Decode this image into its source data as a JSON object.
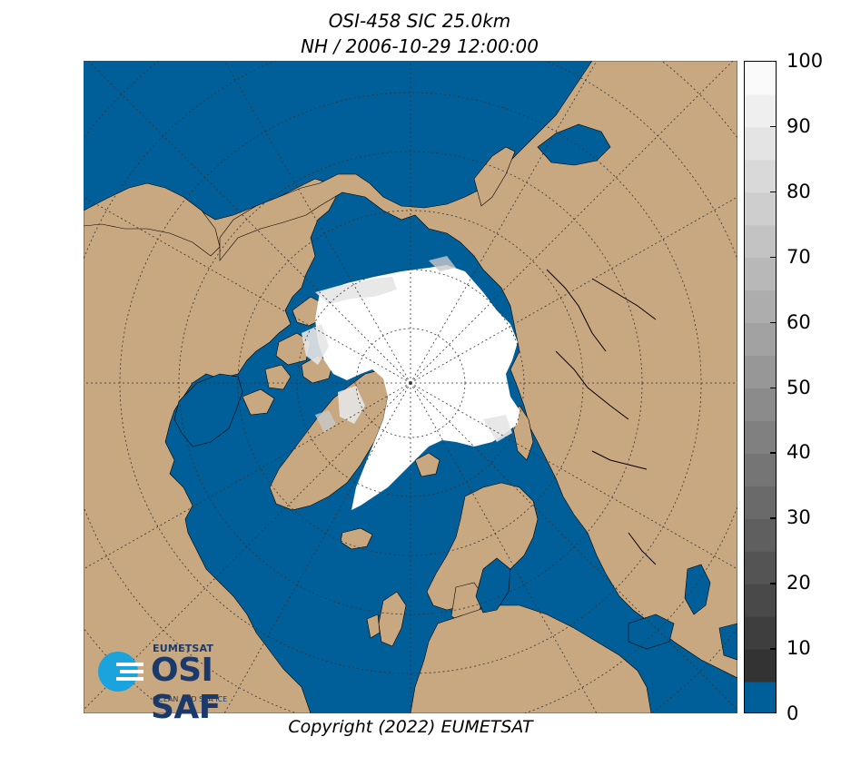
{
  "title_line1": "OSI-458 SIC 25.0km",
  "title_line2": "NH / 2006-10-29 12:00:00",
  "copyright": "Copyright (2022)  EUMETSAT",
  "logo": {
    "top": "EUMETSAT",
    "main": "OSI SAF",
    "bottom": "OCEAN AND SEA ICE"
  },
  "colorbar": {
    "min": 0,
    "max": 100,
    "step": 5,
    "tick_labels": [
      "0",
      "10",
      "20",
      "30",
      "40",
      "50",
      "60",
      "70",
      "80",
      "90",
      "100"
    ],
    "zero_color": "#005f99"
  },
  "colors": {
    "ocean": "#005f99",
    "land": "#c8a880",
    "ice": "#ffffff",
    "graticule": "#333333"
  }
}
